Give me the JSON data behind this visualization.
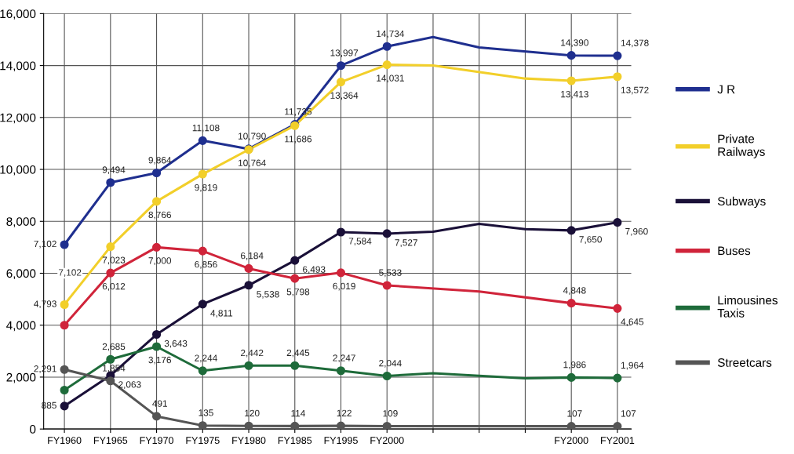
{
  "chart_data": {
    "type": "line",
    "categories": [
      "FY1960",
      "FY1965",
      "FY1970",
      "FY1975",
      "FY1980",
      "FY1985",
      "FY1995",
      "FY2000",
      null,
      null,
      null,
      "FY2000",
      "FY2001"
    ],
    "ylim": [
      0,
      16000
    ],
    "yticks": [
      0,
      {
        "value": 2000,
        "label": "2,000"
      },
      {
        "value": 4000,
        "label": "4,000"
      },
      {
        "value": 6000,
        "label": "6,000"
      },
      {
        "value": 8000,
        "label": "8,000"
      },
      {
        "value": 10000,
        "label": "10,000"
      },
      {
        "value": 12000,
        "label": "12,000"
      },
      {
        "value": 14000,
        "label": "14,000"
      },
      {
        "value": 16000,
        "label": "16,000"
      }
    ],
    "grid": true,
    "legend": "right",
    "marker": "circle",
    "line_style": "solid",
    "series": [
      {
        "name": "J R",
        "color": "#1f2f8f",
        "values": [
          7102,
          9494,
          9864,
          11108,
          10790,
          11735,
          13997,
          14734,
          15100,
          14700,
          null,
          14390,
          14378
        ],
        "value_labels": [
          "7,102",
          "9,494",
          "9,864",
          "11,108",
          "10,790",
          "11,735",
          "13,997",
          "14,734",
          null,
          null,
          null,
          "14,390",
          "14,378"
        ]
      },
      {
        "name": "Private\nRailways",
        "color": "#f2cf2a",
        "values": [
          4793,
          7023,
          8766,
          9819,
          10764,
          11686,
          13364,
          14031,
          14000,
          null,
          13500,
          13413,
          13572
        ],
        "value_labels": [
          "4,793",
          "7,023",
          "8,766",
          "9,819",
          "10,764",
          "11,686",
          "13,364",
          "14,031",
          null,
          null,
          null,
          "13,413",
          "13,572"
        ]
      },
      {
        "name": "Subways",
        "color": "#1a1038",
        "values": [
          885,
          2063,
          3643,
          4811,
          5538,
          6493,
          7584,
          7527,
          7600,
          7900,
          7700,
          7650,
          7960
        ],
        "value_labels": [
          "885",
          "2,063",
          "3,643",
          "4,811",
          "5,538",
          "6,493",
          "7,584",
          "7,527",
          null,
          null,
          null,
          "7,650",
          "7,960"
        ]
      },
      {
        "name": "Buses",
        "color": "#d0243a",
        "values": [
          4000,
          6012,
          7000,
          6856,
          6184,
          5798,
          6019,
          5533,
          null,
          5300,
          null,
          4848,
          4645
        ],
        "value_labels": [
          null,
          "6,012",
          "7,000",
          "6,856",
          "6,184",
          "5,798",
          "6,019",
          "5,533",
          null,
          null,
          null,
          "4,848",
          "4,645"
        ]
      },
      {
        "name": "Limousines\nTaxis",
        "color": "#1e6b3a",
        "values": [
          1500,
          2685,
          3176,
          2244,
          2442,
          2445,
          2247,
          2044,
          2150,
          null,
          1950,
          1986,
          1964
        ],
        "value_labels": [
          null,
          "2,685",
          "3,176",
          "2,244",
          "2,442",
          "2,445",
          "2,247",
          "2,044",
          null,
          null,
          null,
          "1,986",
          "1,964"
        ]
      },
      {
        "name": "Streetcars",
        "color": "#555555",
        "values": [
          2291,
          1854,
          491,
          135,
          120,
          114,
          122,
          109,
          null,
          null,
          null,
          107,
          107
        ],
        "value_labels": [
          "2,291",
          "1,854",
          "491",
          "135",
          "120",
          "114",
          "122",
          "109",
          null,
          null,
          null,
          "107",
          "107"
        ]
      }
    ],
    "annotations": [
      "7,102"
    ]
  }
}
